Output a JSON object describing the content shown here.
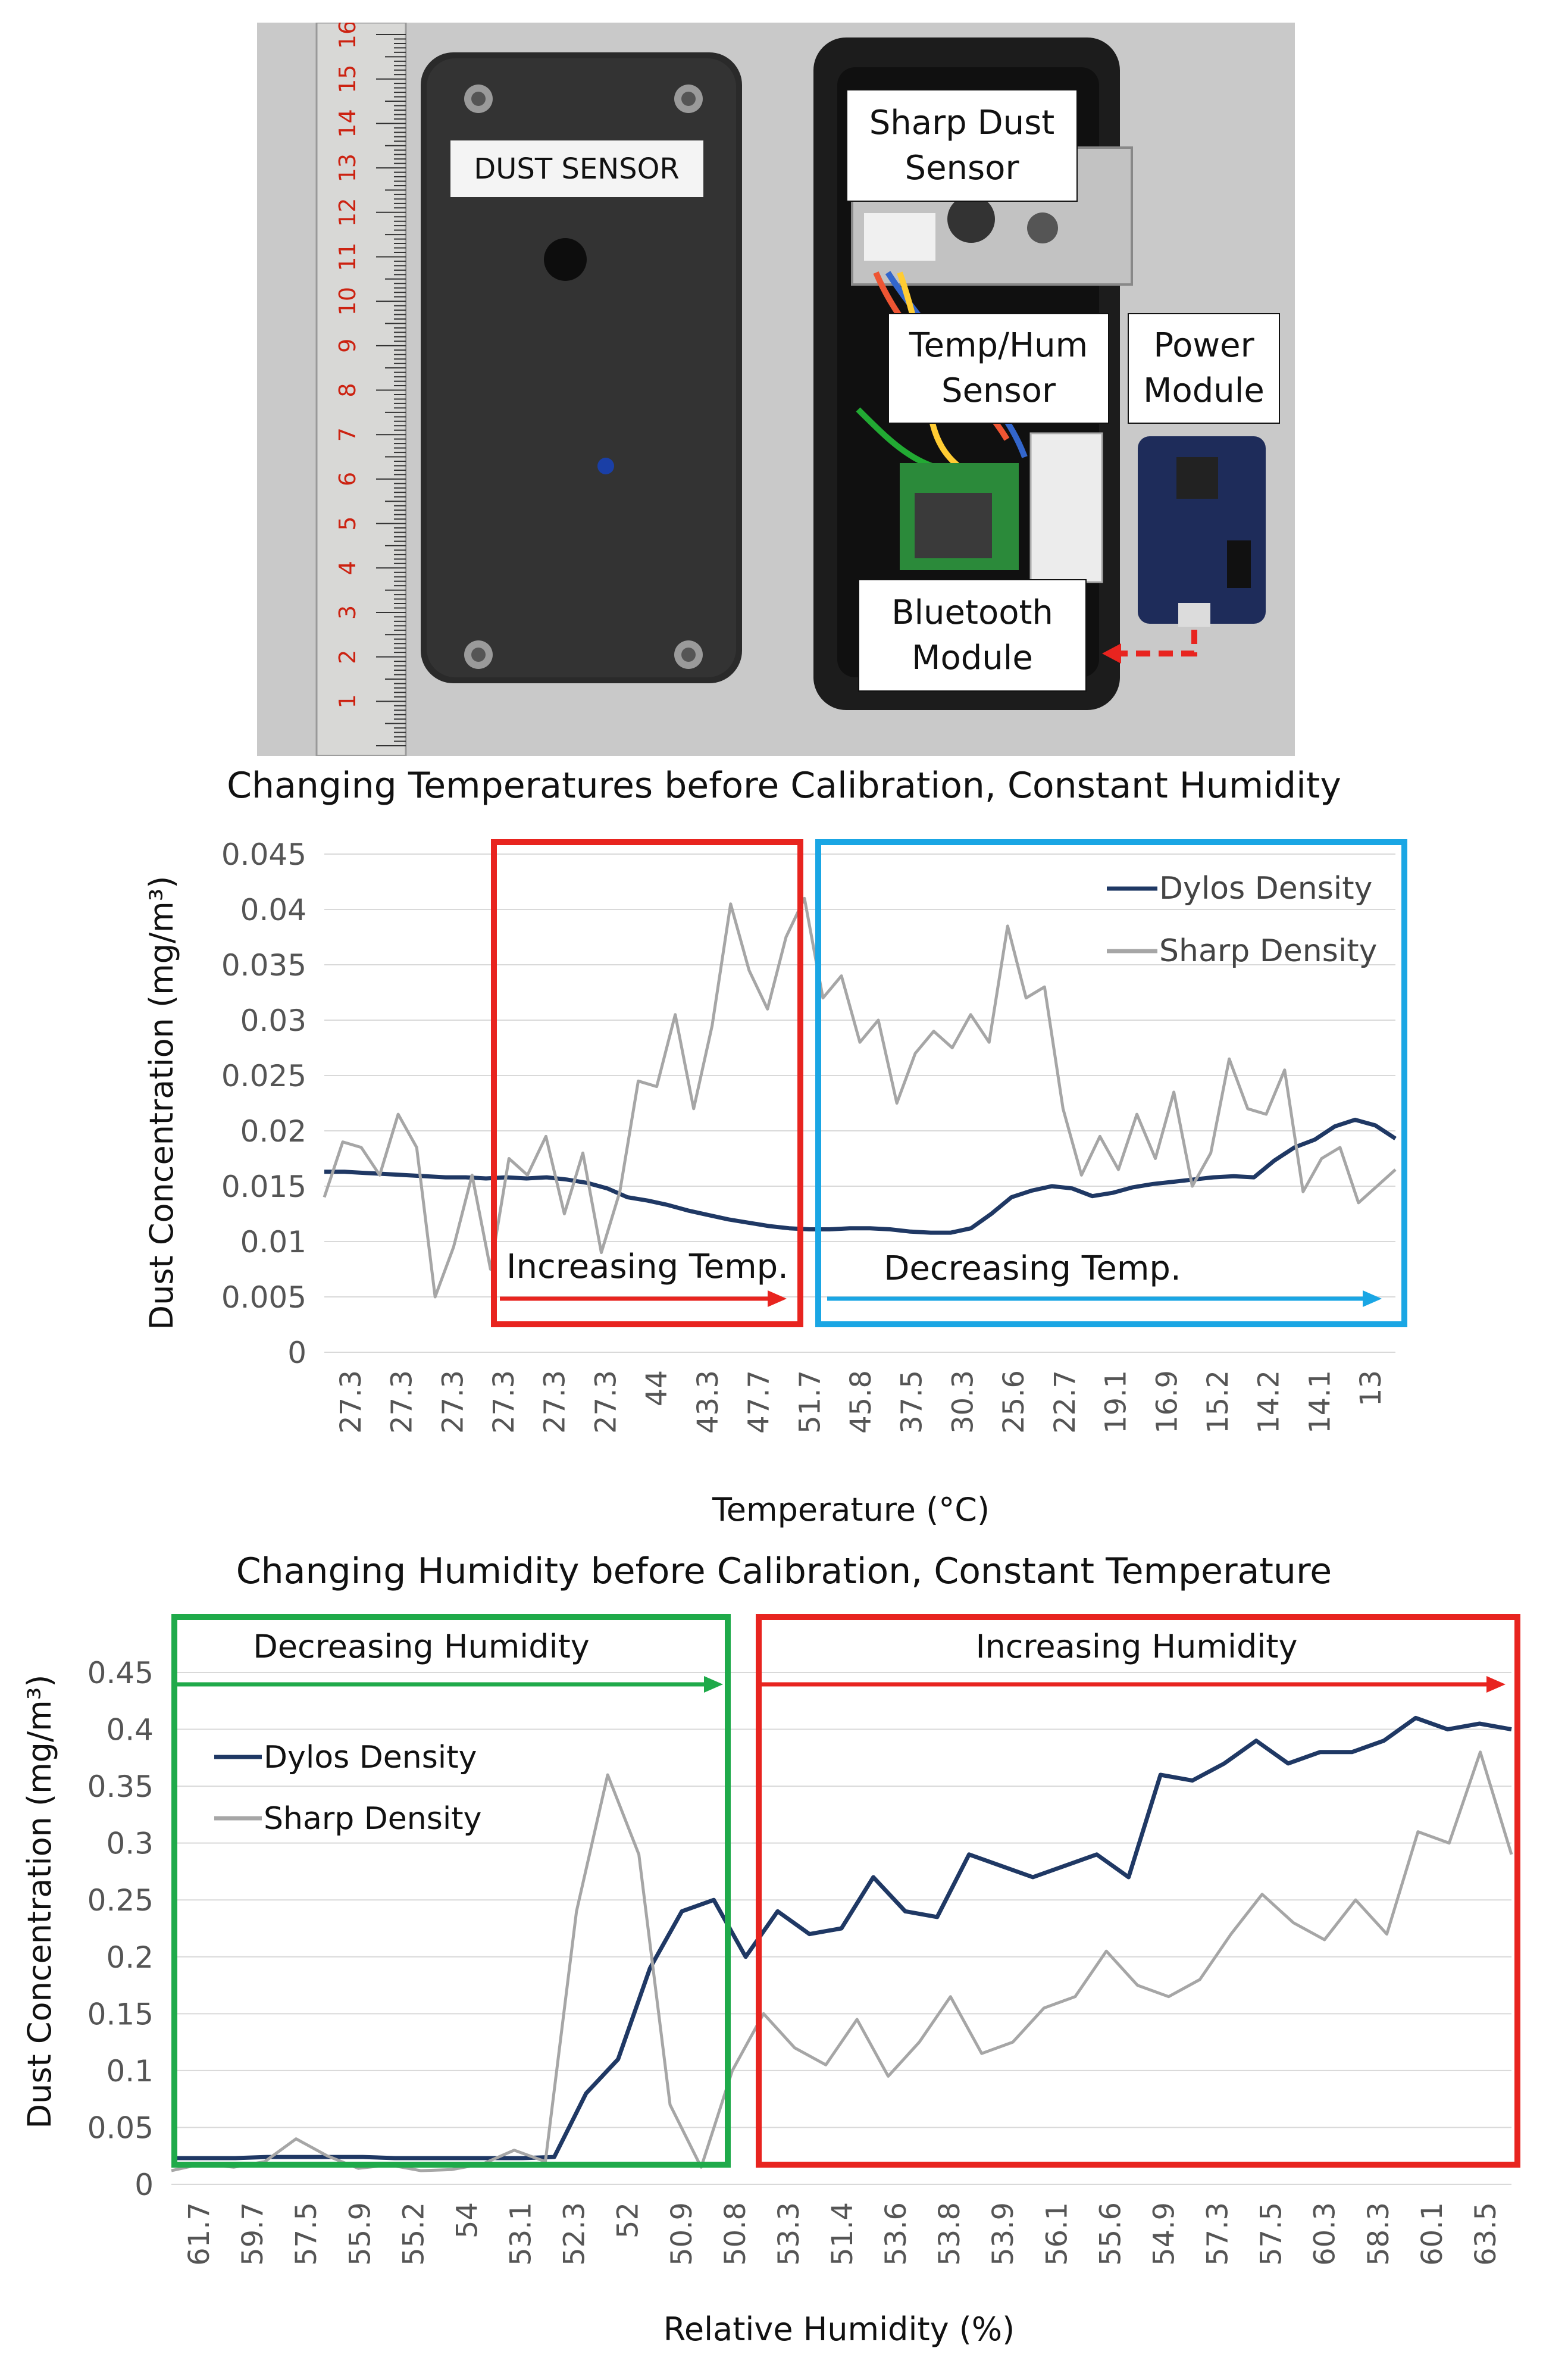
{
  "figure": {
    "photo": {
      "sensor_label": "DUST SENSOR",
      "callouts": [
        {
          "id": "sharp",
          "text": "Sharp Dust\nSensor"
        },
        {
          "id": "temphum",
          "text": "Temp/Hum\nSensor"
        },
        {
          "id": "power",
          "text": "Power\nModule"
        },
        {
          "id": "bluetooth",
          "text": "Bluetooth\nModule"
        }
      ],
      "ruler_numbers": [
        "1",
        "2",
        "3",
        "4",
        "5",
        "6",
        "7",
        "8",
        "9",
        "10",
        "11",
        "12",
        "13",
        "14",
        "15",
        "16"
      ],
      "colors": {
        "background": "#c9c9c9",
        "case": "#2a2a2a",
        "arrow": "#e8241f"
      }
    }
  },
  "chart_data": [
    {
      "type": "line",
      "title": "Changing Temperatures before Calibration, Constant Humidity",
      "xlabel": "Temperature (°C)",
      "ylabel": "Dust Concentration (mg/m³)",
      "ylim": [
        0,
        0.045
      ],
      "yticks": [
        "0",
        "0.005",
        "0.01",
        "0.015",
        "0.02",
        "0.025",
        "0.03",
        "0.035",
        "0.04",
        "0.045"
      ],
      "x_tick_labels": [
        "27.3",
        "27.3",
        "27.3",
        "27.3",
        "27.3",
        "27.3",
        "44",
        "43.3",
        "47.7",
        "51.7",
        "45.8",
        "37.5",
        "30.3",
        "25.6",
        "22.7",
        "19.1",
        "16.9",
        "15.2",
        "14.2",
        "14.1",
        "13"
      ],
      "grid": true,
      "legend_position": "top-right",
      "series": [
        {
          "name": "Dylos Density",
          "color": "#1f3864",
          "values": [
            0.0163,
            0.0163,
            0.0162,
            0.0161,
            0.016,
            0.0159,
            0.0158,
            0.0158,
            0.0157,
            0.0158,
            0.0157,
            0.0158,
            0.0156,
            0.0153,
            0.0148,
            0.014,
            0.0137,
            0.0133,
            0.0128,
            0.0124,
            0.012,
            0.0117,
            0.0114,
            0.0112,
            0.0111,
            0.0111,
            0.0112,
            0.0112,
            0.0111,
            0.0109,
            0.0108,
            0.0108,
            0.0112,
            0.0125,
            0.014,
            0.0146,
            0.015,
            0.0148,
            0.0141,
            0.0144,
            0.0149,
            0.0152,
            0.0154,
            0.0156,
            0.0158,
            0.0159,
            0.0158,
            0.0173,
            0.0185,
            0.0192,
            0.0204,
            0.021,
            0.0205,
            0.0193
          ]
        },
        {
          "name": "Sharp Density",
          "color": "#a6a6a6",
          "values": [
            0.014,
            0.019,
            0.0185,
            0.016,
            0.0215,
            0.0185,
            0.005,
            0.0095,
            0.016,
            0.0075,
            0.0175,
            0.016,
            0.0195,
            0.0125,
            0.018,
            0.009,
            0.0145,
            0.0245,
            0.024,
            0.0305,
            0.022,
            0.0295,
            0.0405,
            0.0345,
            0.031,
            0.0375,
            0.041,
            0.032,
            0.034,
            0.028,
            0.03,
            0.0225,
            0.027,
            0.029,
            0.0275,
            0.0305,
            0.028,
            0.0385,
            0.032,
            0.033,
            0.022,
            0.016,
            0.0195,
            0.0165,
            0.0215,
            0.0175,
            0.0235,
            0.015,
            0.018,
            0.0265,
            0.022,
            0.0215,
            0.0255,
            0.0145,
            0.0175,
            0.0185,
            0.0135,
            0.015,
            0.0165
          ]
        }
      ],
      "annotations": [
        {
          "text": "Increasing Temp.",
          "color": "#e8241f"
        },
        {
          "text": "Decreasing Temp.",
          "color": "#1aa6e4"
        }
      ]
    },
    {
      "type": "line",
      "title": "Changing Humidity before Calibration, Constant Temperature",
      "xlabel": "Relative Humidity (%)",
      "ylabel": "Dust Concentration (mg/m³)",
      "ylim": [
        0,
        0.45
      ],
      "yticks": [
        "0",
        "0.05",
        "0.1",
        "0.15",
        "0.2",
        "0.25",
        "0.3",
        "0.35",
        "0.4",
        "0.45"
      ],
      "x_tick_labels": [
        "61.7",
        "59.7",
        "57.5",
        "55.9",
        "55.2",
        "54",
        "53.1",
        "52.3",
        "52",
        "50.9",
        "50.8",
        "53.3",
        "51.4",
        "53.6",
        "53.8",
        "53.9",
        "56.1",
        "55.6",
        "54.9",
        "57.3",
        "57.5",
        "60.3",
        "58.3",
        "60.1",
        "63.5"
      ],
      "grid": true,
      "legend_position": "top-left",
      "series": [
        {
          "name": "Dylos Density",
          "color": "#1f3864",
          "values": [
            0.023,
            0.023,
            0.023,
            0.024,
            0.024,
            0.024,
            0.024,
            0.023,
            0.023,
            0.023,
            0.023,
            0.023,
            0.024,
            0.08,
            0.11,
            0.19,
            0.24,
            0.25,
            0.2,
            0.24,
            0.22,
            0.225,
            0.27,
            0.24,
            0.235,
            0.29,
            0.28,
            0.27,
            0.28,
            0.29,
            0.27,
            0.36,
            0.355,
            0.37,
            0.39,
            0.37,
            0.38,
            0.38,
            0.39,
            0.41,
            0.4,
            0.405,
            0.4
          ]
        },
        {
          "name": "Sharp Density",
          "color": "#a6a6a6",
          "values": [
            0.012,
            0.018,
            0.015,
            0.02,
            0.04,
            0.025,
            0.014,
            0.017,
            0.012,
            0.013,
            0.018,
            0.03,
            0.02,
            0.24,
            0.36,
            0.29,
            0.07,
            0.015,
            0.1,
            0.15,
            0.12,
            0.105,
            0.145,
            0.095,
            0.125,
            0.165,
            0.115,
            0.125,
            0.155,
            0.165,
            0.205,
            0.175,
            0.165,
            0.18,
            0.22,
            0.255,
            0.23,
            0.215,
            0.25,
            0.22,
            0.31,
            0.3,
            0.38,
            0.29
          ]
        }
      ],
      "annotations": [
        {
          "text": "Decreasing Humidity",
          "color": "#1faa4a"
        },
        {
          "text": "Increasing Humidity",
          "color": "#e8241f"
        }
      ]
    }
  ]
}
